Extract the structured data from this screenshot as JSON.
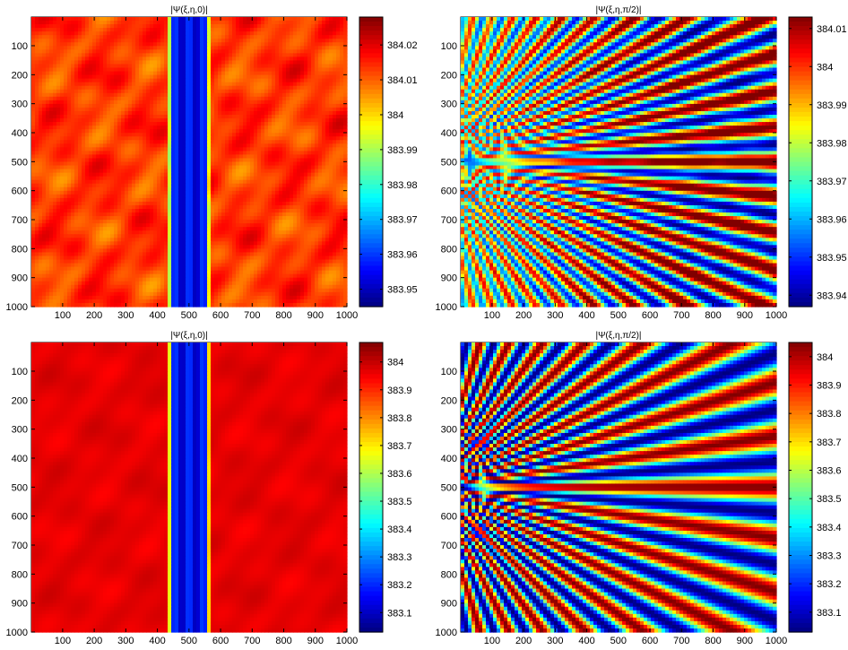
{
  "chart_data": [
    {
      "type": "heatmap",
      "pattern": "vertical_band",
      "title": "|Ψ(ξ,η,0)|",
      "x_ticks": [
        100,
        200,
        300,
        400,
        500,
        600,
        700,
        800,
        900,
        1000
      ],
      "y_ticks": [
        100,
        200,
        300,
        400,
        500,
        600,
        700,
        800,
        900,
        1000
      ],
      "xlim": [
        1,
        1000
      ],
      "ylim": [
        1,
        1000
      ],
      "colorbar": {
        "min": 383.945,
        "max": 384.028,
        "ticks": [
          383.95,
          383.96,
          383.97,
          383.98,
          383.99,
          384,
          384.01,
          384.02
        ]
      },
      "band": {
        "center": 500,
        "half_width": 55
      }
    },
    {
      "type": "heatmap",
      "pattern": "fan",
      "title": "|Ψ(ξ,η,π/2)|",
      "x_ticks": [
        100,
        200,
        300,
        400,
        500,
        600,
        700,
        800,
        900,
        1000
      ],
      "y_ticks": [
        100,
        200,
        300,
        400,
        500,
        600,
        700,
        800,
        900,
        1000
      ],
      "xlim": [
        1,
        1000
      ],
      "ylim": [
        1,
        1000
      ],
      "colorbar": {
        "min": 383.937,
        "max": 384.013,
        "ticks": [
          383.94,
          383.95,
          383.96,
          383.97,
          383.98,
          383.99,
          384,
          384.01
        ]
      },
      "fan": {
        "density": 0.055,
        "noise": true
      }
    },
    {
      "type": "heatmap",
      "pattern": "vertical_band",
      "title": "|Ψ(ξ,η,0)|",
      "x_ticks": [
        100,
        200,
        300,
        400,
        500,
        600,
        700,
        800,
        900,
        1000
      ],
      "y_ticks": [
        100,
        200,
        300,
        400,
        500,
        600,
        700,
        800,
        900,
        1000
      ],
      "xlim": [
        1,
        1000
      ],
      "ylim": [
        1,
        1000
      ],
      "colorbar": {
        "min": 383.03,
        "max": 384.07,
        "ticks": [
          383.1,
          383.2,
          383.3,
          383.4,
          383.5,
          383.6,
          383.7,
          383.8,
          383.9,
          384
        ]
      },
      "band": {
        "center": 500,
        "half_width": 55
      }
    },
    {
      "type": "heatmap",
      "pattern": "fan",
      "title": "|Ψ(ξ,η,π/2)|",
      "x_ticks": [
        100,
        200,
        300,
        400,
        500,
        600,
        700,
        800,
        900,
        1000
      ],
      "y_ticks": [
        100,
        200,
        300,
        400,
        500,
        600,
        700,
        800,
        900,
        1000
      ],
      "xlim": [
        1,
        1000
      ],
      "ylim": [
        1,
        1000
      ],
      "colorbar": {
        "min": 383.03,
        "max": 384.05,
        "ticks": [
          383.1,
          383.2,
          383.3,
          383.4,
          383.5,
          383.6,
          383.7,
          383.8,
          383.9,
          384
        ]
      },
      "fan": {
        "density": 0.08,
        "noise": false
      }
    }
  ]
}
